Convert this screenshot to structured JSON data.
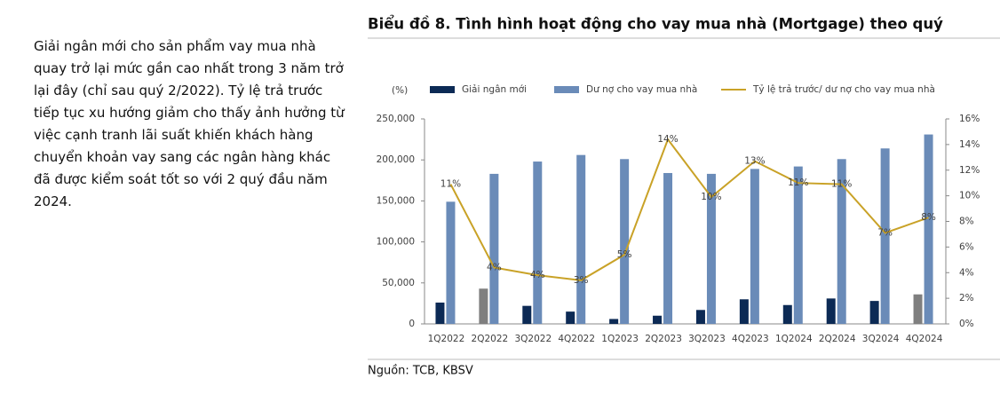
{
  "side_text": [
    "Giải ngân mới cho sản phẩm vay mua nhà",
    "quay trở lại mức gần cao nhất trong 3 năm trở",
    "lại đây (chỉ sau quý 2/2022). Tỷ lệ trả trước",
    "tiếp tục xu hướng giảm cho thấy ảnh hưởng từ",
    "việc cạnh tranh lãi suất khiến khách hàng",
    "chuyển khoản vay sang các ngân hàng khác",
    "đã được kiểm soát tốt so với 2 quý đầu năm",
    "2024."
  ],
  "chart_data": {
    "type": "bar-line",
    "title": "Biểu đồ 8. Tình hình hoạt động cho vay mua nhà (Mortgage) theo quý",
    "y_unit": "(%)",
    "categories": [
      "1Q2022",
      "2Q2022",
      "3Q2022",
      "4Q2022",
      "1Q2023",
      "2Q2023",
      "3Q2023",
      "4Q2023",
      "1Q2024",
      "2Q2024",
      "3Q2024",
      "4Q2024"
    ],
    "series": [
      {
        "name": "Giải ngân mới",
        "type": "bar",
        "color": "#0c2a55",
        "point_colors": {
          "1": "#7f7f7f",
          "11": "#7f7f7f"
        },
        "values": [
          26000,
          43000,
          22000,
          15000,
          6000,
          10000,
          17000,
          30000,
          23000,
          31000,
          28000,
          36000
        ]
      },
      {
        "name": "Dư nợ cho vay mua nhà",
        "type": "bar",
        "color": "#6a8bb8",
        "values": [
          149000,
          183000,
          198000,
          206000,
          201000,
          184000,
          183000,
          189000,
          192000,
          201000,
          214000,
          231000
        ]
      },
      {
        "name": "Tỷ lệ trả trước/ dư nợ cho vay mua nhà",
        "type": "line",
        "axis": "y2",
        "color": "#c9a227",
        "values": [
          10.9,
          4.4,
          3.8,
          3.4,
          5.4,
          14.4,
          9.9,
          12.7,
          11.0,
          10.9,
          7.1,
          8.3
        ],
        "value_labels": [
          "11%",
          "4%",
          "4%",
          "3%",
          "5%",
          "14%",
          "10%",
          "13%",
          "11%",
          "11%",
          "7%",
          "8%"
        ]
      }
    ],
    "ylim": [
      0,
      250000
    ],
    "yticks": [
      0,
      {
        "value": 50000,
        "label": "50,000"
      },
      {
        "value": 100000,
        "label": "100,000"
      },
      {
        "value": 150000,
        "label": "150,000"
      },
      {
        "value": 200000,
        "label": "200,000"
      },
      {
        "value": 250000,
        "label": "250,000"
      }
    ],
    "y2lim": [
      0,
      16
    ],
    "y2ticks": [
      {
        "value": 0,
        "label": "0%"
      },
      {
        "value": 2,
        "label": "2%"
      },
      {
        "value": 4,
        "label": "4%"
      },
      {
        "value": 6,
        "label": "6%"
      },
      {
        "value": 8,
        "label": "8%"
      },
      {
        "value": 10,
        "label": "10%"
      },
      {
        "value": 12,
        "label": "12%"
      },
      {
        "value": 14,
        "label": "14%"
      },
      {
        "value": 16,
        "label": "16%"
      }
    ],
    "grid": false,
    "legend": "top"
  },
  "source": "Nguồn: TCB, KBSV"
}
